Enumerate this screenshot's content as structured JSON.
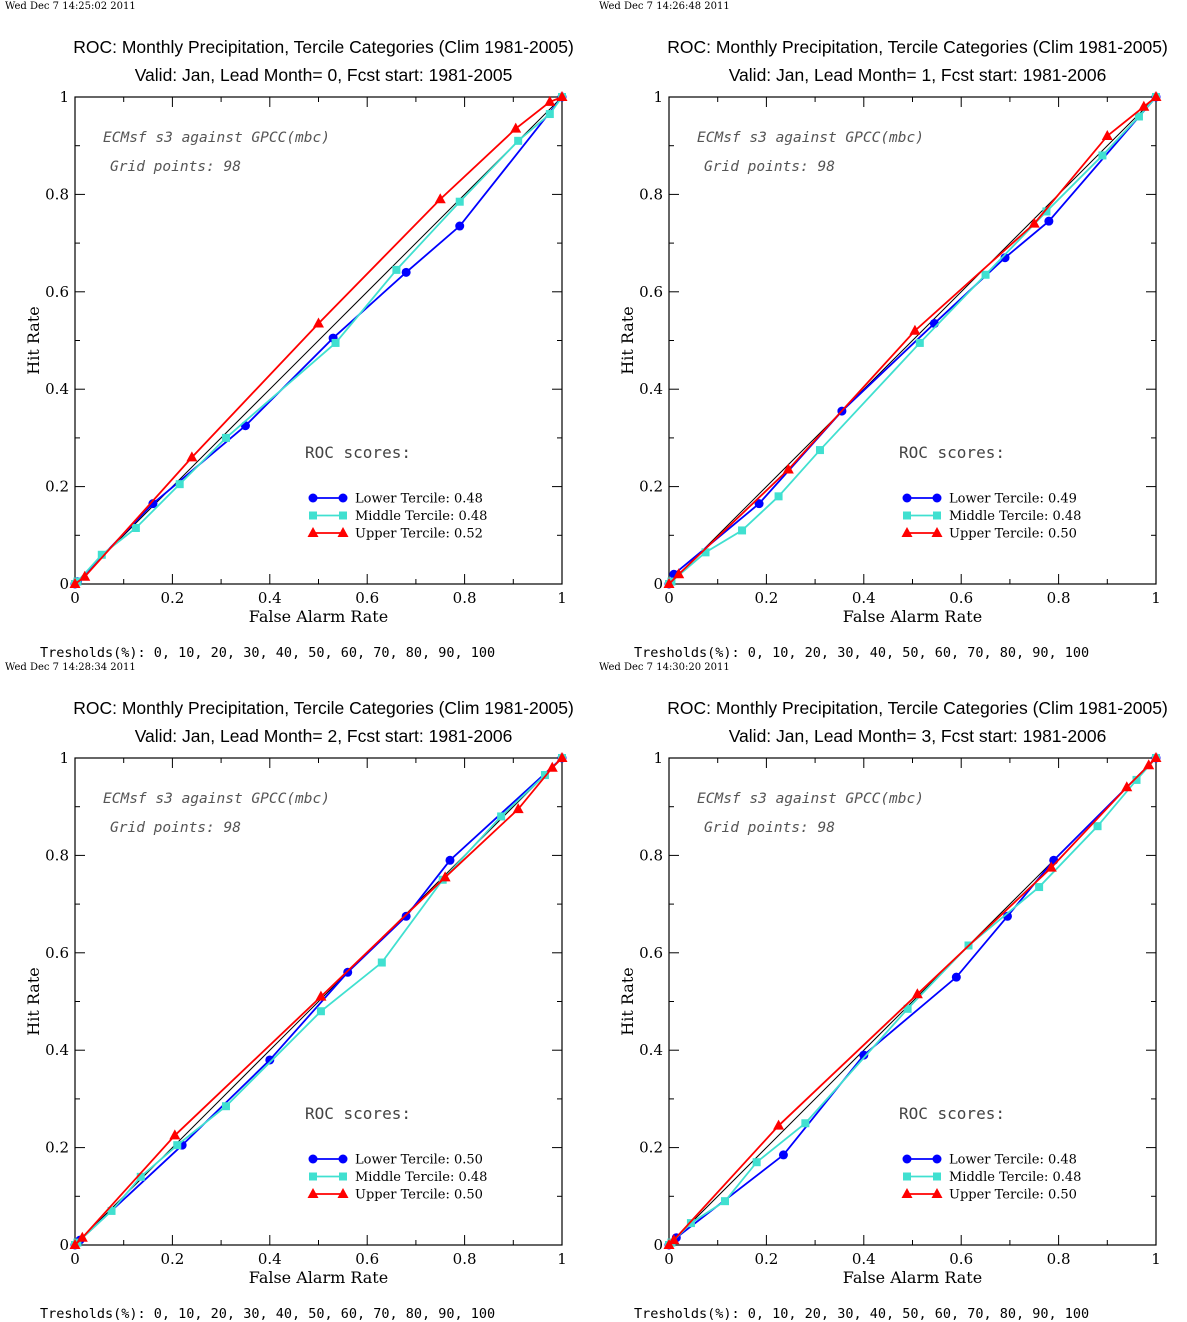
{
  "chart_data": [
    {
      "type": "line",
      "stamp": "Wed Dec  7 14:25:02 2011",
      "title": "ROC: Monthly Precipitation, Tercile Categories (Clim 1981-2005)",
      "subtitle": "Valid: Jan, Lead Month= 0, Fcst start: 1981-2005",
      "xlabel": "False Alarm Rate",
      "ylabel": "Hit Rate",
      "xlim": [
        0,
        1
      ],
      "ylim": [
        0,
        1
      ],
      "xticks": [
        "0",
        "0.2",
        "0.4",
        "0.6",
        "0.8",
        "1"
      ],
      "yticks": [
        "0",
        "0.2",
        "0.4",
        "0.6",
        "0.8",
        "1"
      ],
      "annotation_line1": "ECMsf s3 against GPCC(mbc)",
      "annotation_line2": "Grid points:   98",
      "scores_heading": "ROC scores:",
      "thresholds": "Tresholds(%): 0, 10, 20, 30, 40, 50, 60, 70, 80, 90, 100",
      "grid": false,
      "legend_position": "lower-right",
      "series": [
        {
          "name": "Lower Tercile: 0.48",
          "color": "#0000ff",
          "marker": "circle",
          "x": [
            0,
            0.005,
            0.16,
            0.35,
            0.53,
            0.68,
            0.79,
            1
          ],
          "y": [
            0,
            0.005,
            0.165,
            0.325,
            0.505,
            0.64,
            0.735,
            1
          ]
        },
        {
          "name": "Middle Tercile: 0.48",
          "color": "#40e0d0",
          "marker": "square",
          "x": [
            0,
            0.005,
            0.055,
            0.125,
            0.215,
            0.31,
            0.535,
            0.66,
            0.79,
            0.91,
            0.975,
            1
          ],
          "y": [
            0,
            0.005,
            0.06,
            0.115,
            0.205,
            0.3,
            0.495,
            0.645,
            0.785,
            0.91,
            0.965,
            1
          ]
        },
        {
          "name": "Upper Tercile: 0.52",
          "color": "#ff0000",
          "marker": "triangle",
          "x": [
            0,
            0.02,
            0.24,
            0.5,
            0.75,
            0.905,
            0.975,
            1
          ],
          "y": [
            0,
            0.015,
            0.26,
            0.535,
            0.79,
            0.935,
            0.99,
            1
          ]
        }
      ]
    },
    {
      "type": "line",
      "stamp": "Wed Dec  7 14:26:48 2011",
      "title": "ROC: Monthly Precipitation, Tercile Categories (Clim 1981-2005)",
      "subtitle": "Valid: Jan, Lead Month= 1, Fcst start: 1981-2006",
      "xlabel": "False Alarm Rate",
      "ylabel": "Hit Rate",
      "xlim": [
        0,
        1
      ],
      "ylim": [
        0,
        1
      ],
      "xticks": [
        "0",
        "0.2",
        "0.4",
        "0.6",
        "0.8",
        "1"
      ],
      "yticks": [
        "0",
        "0.2",
        "0.4",
        "0.6",
        "0.8",
        "1"
      ],
      "annotation_line1": "ECMsf s3 against GPCC(mbc)",
      "annotation_line2": "Grid points:   98",
      "scores_heading": "ROC scores:",
      "thresholds": "Tresholds(%): 0, 10, 20, 30, 40, 50, 60, 70, 80, 90, 100",
      "grid": false,
      "legend_position": "lower-right",
      "series": [
        {
          "name": "Lower Tercile: 0.49",
          "color": "#0000ff",
          "marker": "circle",
          "x": [
            0,
            0.01,
            0.185,
            0.355,
            0.545,
            0.69,
            0.78,
            1
          ],
          "y": [
            0,
            0.02,
            0.165,
            0.355,
            0.535,
            0.67,
            0.745,
            1
          ]
        },
        {
          "name": "Middle Tercile: 0.48",
          "color": "#40e0d0",
          "marker": "square",
          "x": [
            0,
            0.005,
            0.075,
            0.15,
            0.225,
            0.31,
            0.515,
            0.65,
            0.775,
            0.89,
            0.965,
            1
          ],
          "y": [
            0,
            0.005,
            0.065,
            0.11,
            0.18,
            0.275,
            0.495,
            0.635,
            0.765,
            0.88,
            0.96,
            1
          ]
        },
        {
          "name": "Upper Tercile: 0.50",
          "color": "#ff0000",
          "marker": "triangle",
          "x": [
            0,
            0.02,
            0.245,
            0.505,
            0.75,
            0.9,
            0.975,
            1
          ],
          "y": [
            0,
            0.02,
            0.235,
            0.52,
            0.74,
            0.92,
            0.98,
            1
          ]
        }
      ]
    },
    {
      "type": "line",
      "stamp": "Wed Dec  7 14:28:34 2011",
      "title": "ROC: Monthly Precipitation, Tercile Categories (Clim 1981-2005)",
      "subtitle": "Valid: Jan, Lead Month= 2, Fcst start: 1981-2006",
      "xlabel": "False Alarm Rate",
      "ylabel": "Hit Rate",
      "xlim": [
        0,
        1
      ],
      "ylim": [
        0,
        1
      ],
      "xticks": [
        "0",
        "0.2",
        "0.4",
        "0.6",
        "0.8",
        "1"
      ],
      "yticks": [
        "0",
        "0.2",
        "0.4",
        "0.6",
        "0.8",
        "1"
      ],
      "annotation_line1": "ECMsf s3 against GPCC(mbc)",
      "annotation_line2": "Grid points:   98",
      "scores_heading": "ROC scores:",
      "thresholds": "Tresholds(%): 0, 10, 20, 30, 40, 50, 60, 70, 80, 90, 100",
      "grid": false,
      "legend_position": "lower-right",
      "series": [
        {
          "name": "Lower Tercile: 0.50",
          "color": "#0000ff",
          "marker": "circle",
          "x": [
            0,
            0.01,
            0.22,
            0.4,
            0.56,
            0.68,
            0.77,
            1
          ],
          "y": [
            0,
            0.01,
            0.205,
            0.38,
            0.56,
            0.675,
            0.79,
            1
          ]
        },
        {
          "name": "Middle Tercile: 0.48",
          "color": "#40e0d0",
          "marker": "square",
          "x": [
            0,
            0.005,
            0.075,
            0.135,
            0.21,
            0.31,
            0.505,
            0.63,
            0.755,
            0.875,
            0.965,
            1
          ],
          "y": [
            0,
            0.005,
            0.07,
            0.14,
            0.205,
            0.285,
            0.48,
            0.58,
            0.75,
            0.88,
            0.965,
            1
          ]
        },
        {
          "name": "Upper Tercile: 0.50",
          "color": "#ff0000",
          "marker": "triangle",
          "x": [
            0,
            0.015,
            0.205,
            0.505,
            0.76,
            0.91,
            0.98,
            1
          ],
          "y": [
            0,
            0.015,
            0.225,
            0.51,
            0.755,
            0.895,
            0.98,
            1
          ]
        }
      ]
    },
    {
      "type": "line",
      "stamp": "Wed Dec  7 14:30:20 2011",
      "title": "ROC: Monthly Precipitation, Tercile Categories (Clim 1981-2005)",
      "subtitle": "Valid: Jan, Lead Month= 3, Fcst start: 1981-2006",
      "xlabel": "False Alarm Rate",
      "ylabel": "Hit Rate",
      "xlim": [
        0,
        1
      ],
      "ylim": [
        0,
        1
      ],
      "xticks": [
        "0",
        "0.2",
        "0.4",
        "0.6",
        "0.8",
        "1"
      ],
      "yticks": [
        "0",
        "0.2",
        "0.4",
        "0.6",
        "0.8",
        "1"
      ],
      "annotation_line1": "ECMsf s3 against GPCC(mbc)",
      "annotation_line2": "Grid points:   98",
      "scores_heading": "ROC scores:",
      "thresholds": "Tresholds(%): 0, 10, 20, 30, 40, 50, 60, 70, 80, 90, 100",
      "grid": false,
      "legend_position": "lower-right",
      "series": [
        {
          "name": "Lower Tercile: 0.48",
          "color": "#0000ff",
          "marker": "circle",
          "x": [
            0,
            0.015,
            0.235,
            0.4,
            0.59,
            0.695,
            0.79,
            1
          ],
          "y": [
            0,
            0.015,
            0.185,
            0.39,
            0.55,
            0.675,
            0.79,
            1
          ]
        },
        {
          "name": "Middle Tercile: 0.48",
          "color": "#40e0d0",
          "marker": "square",
          "x": [
            0,
            0.005,
            0.045,
            0.115,
            0.18,
            0.28,
            0.49,
            0.615,
            0.76,
            0.88,
            0.96,
            1
          ],
          "y": [
            0,
            0.005,
            0.045,
            0.09,
            0.17,
            0.25,
            0.485,
            0.615,
            0.735,
            0.86,
            0.955,
            1
          ]
        },
        {
          "name": "Upper Tercile: 0.50",
          "color": "#ff0000",
          "marker": "triangle",
          "x": [
            0,
            0.01,
            0.225,
            0.51,
            0.785,
            0.94,
            0.985,
            1
          ],
          "y": [
            0,
            0.01,
            0.245,
            0.515,
            0.775,
            0.94,
            0.985,
            1
          ]
        }
      ]
    }
  ]
}
